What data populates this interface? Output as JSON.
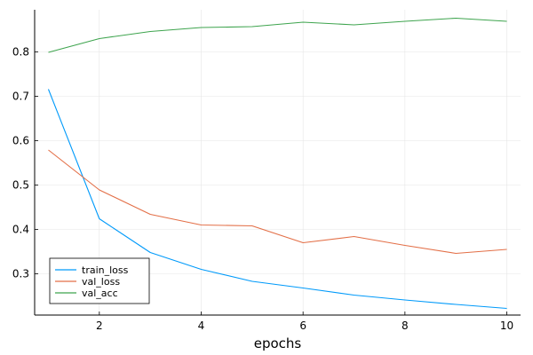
{
  "chart_data": {
    "type": "line",
    "title": "",
    "xlabel": "epochs",
    "ylabel": "",
    "x": [
      1,
      2,
      3,
      4,
      5,
      6,
      7,
      8,
      9,
      10
    ],
    "xlim": [
      0.73,
      10.27
    ],
    "ylim": [
      0.207,
      0.895
    ],
    "xticks": [
      2,
      4,
      6,
      8,
      10
    ],
    "yticks": [
      0.3,
      0.4,
      0.5,
      0.6,
      0.7,
      0.8
    ],
    "xtick_labels": [
      "2",
      "4",
      "6",
      "8",
      "10"
    ],
    "ytick_labels": [
      "0.3",
      "0.4",
      "0.5",
      "0.6",
      "0.7",
      "0.8"
    ],
    "grid": true,
    "legend_position": "bottom-left",
    "series": [
      {
        "name": "train_loss",
        "color": "#009AFA",
        "values": [
          0.716,
          0.424,
          0.348,
          0.31,
          0.283,
          0.268,
          0.252,
          0.241,
          0.231,
          0.222
        ]
      },
      {
        "name": "val_loss",
        "color": "#E36F47",
        "values": [
          0.579,
          0.489,
          0.434,
          0.41,
          0.408,
          0.37,
          0.384,
          0.364,
          0.346,
          0.355
        ]
      },
      {
        "name": "val_acc",
        "color": "#3EA44E",
        "values": [
          0.799,
          0.83,
          0.846,
          0.855,
          0.857,
          0.867,
          0.861,
          0.869,
          0.876,
          0.869
        ]
      }
    ]
  }
}
